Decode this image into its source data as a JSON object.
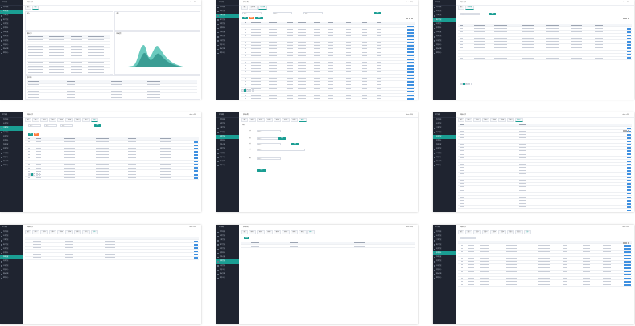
{
  "sidebar": {
    "logo": "PT系统",
    "items": [
      "首页概览",
      "业务管理",
      "订单管理",
      "客户管理",
      "财务管理",
      "报表统计",
      "系统设置",
      "权限管理",
      "日志管理",
      "消息中心",
      "数据字典",
      "帮助中心"
    ]
  },
  "topbar": {
    "title": "控制台首页",
    "user": "admin ▾ 退出"
  },
  "tiles": [
    {
      "id": 1,
      "tabs": [
        "首页",
        "概览"
      ]
    },
    {
      "id": 2,
      "tabs": [
        "首页",
        "业务列表",
        "订单详情"
      ]
    },
    {
      "id": 3,
      "tabs": [
        "首页",
        "订单管理"
      ]
    },
    {
      "id": 4,
      "tabs": [
        "首页",
        "列表一",
        "列表二",
        "列表三",
        "列表四",
        "列表五",
        "列表六",
        "列表七",
        "列表八"
      ]
    },
    {
      "id": 5,
      "tabs": [
        "首页",
        "表单一",
        "表单二",
        "表单三",
        "表单四",
        "表单五",
        "表单六",
        "表单七"
      ]
    },
    {
      "id": 6,
      "tabs": [
        "首页",
        "标签一",
        "标签二",
        "标签三",
        "标签四",
        "标签五",
        "标签六",
        "标签七"
      ]
    },
    {
      "id": 7,
      "tabs": [
        "首页",
        "设置一",
        "设置二",
        "设置三",
        "设置四",
        "设置五",
        "设置六",
        "设置七",
        "设置八"
      ]
    },
    {
      "id": 8,
      "tabs": [
        "首页",
        "模块一",
        "模块二",
        "模块三",
        "模块四",
        "模块五",
        "模块六",
        "模块七",
        "模块八"
      ]
    },
    {
      "id": 9,
      "tabs": [
        "首页",
        "页面一",
        "页面二",
        "页面三",
        "页面四",
        "页面五",
        "页面六",
        "页面七",
        "页面八"
      ]
    }
  ],
  "buttons": {
    "search": "查询",
    "add": "新增",
    "delete": "删除",
    "edit": "编辑",
    "submit": "提交"
  },
  "search": {
    "placeholder": "请输入"
  },
  "dashboard": {
    "card_a_title": "待办",
    "card_b_title": "通知",
    "list_title": "最新订单",
    "chart_title": "数据趋势",
    "info_title": "基本信息"
  },
  "form": {
    "labels": [
      "名称",
      "类型",
      "状态",
      "备注",
      "日期"
    ]
  },
  "colors": {
    "sidebar": "#1f2430",
    "accent": "#1a9e93",
    "warning": "#ff7d3e",
    "action": "#3d8fe0"
  }
}
